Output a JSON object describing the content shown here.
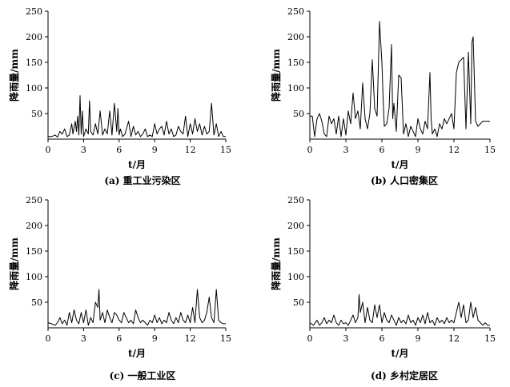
{
  "figure": {
    "x_axis_label": "t/月",
    "y_axis_label": "降雨量/mm"
  },
  "chart_data": [
    {
      "type": "line",
      "caption": "(a) 重工业污染区",
      "xlabel": "t/月",
      "ylabel": "降雨量/mm",
      "xlim": [
        0,
        15
      ],
      "ylim": [
        0,
        250
      ],
      "xticks": [
        0,
        3,
        6,
        9,
        12,
        15
      ],
      "yticks": [
        50,
        100,
        150,
        200,
        250
      ],
      "grid": false,
      "x": [
        0.0,
        0.3,
        0.6,
        0.8,
        1.0,
        1.2,
        1.4,
        1.6,
        1.8,
        2.0,
        2.1,
        2.3,
        2.4,
        2.5,
        2.6,
        2.7,
        2.8,
        2.9,
        3.0,
        3.2,
        3.4,
        3.5,
        3.6,
        3.8,
        4.0,
        4.2,
        4.4,
        4.6,
        4.8,
        5.0,
        5.2,
        5.4,
        5.6,
        5.8,
        5.9,
        6.0,
        6.1,
        6.3,
        6.5,
        6.8,
        7.0,
        7.2,
        7.4,
        7.6,
        7.8,
        8.0,
        8.2,
        8.4,
        8.6,
        8.8,
        9.0,
        9.2,
        9.4,
        9.6,
        9.8,
        10.0,
        10.2,
        10.4,
        10.6,
        10.8,
        11.0,
        11.2,
        11.4,
        11.6,
        11.8,
        12.0,
        12.2,
        12.4,
        12.6,
        12.8,
        13.0,
        13.2,
        13.4,
        13.6,
        13.8,
        14.0,
        14.2,
        14.4,
        14.6,
        14.8,
        15.0
      ],
      "y": [
        5,
        5,
        8,
        4,
        15,
        10,
        20,
        5,
        8,
        30,
        10,
        35,
        15,
        45,
        8,
        85,
        10,
        55,
        5,
        20,
        10,
        75,
        15,
        8,
        30,
        10,
        55,
        8,
        20,
        10,
        55,
        8,
        70,
        15,
        60,
        8,
        20,
        5,
        10,
        35,
        5,
        25,
        8,
        15,
        5,
        10,
        20,
        5,
        8,
        5,
        30,
        10,
        20,
        25,
        8,
        35,
        10,
        20,
        5,
        8,
        25,
        15,
        10,
        45,
        5,
        30,
        10,
        40,
        15,
        30,
        8,
        25,
        10,
        15,
        70,
        8,
        30,
        5,
        15,
        5,
        5
      ]
    },
    {
      "type": "line",
      "caption": "(b) 人口密集区",
      "xlabel": "t/月",
      "ylabel": "降雨量/mm",
      "xlim": [
        0,
        15
      ],
      "ylim": [
        0,
        250
      ],
      "xticks": [
        0,
        3,
        6,
        9,
        12,
        15
      ],
      "yticks": [
        50,
        100,
        150,
        200,
        250
      ],
      "grid": false,
      "x": [
        0.0,
        0.2,
        0.4,
        0.6,
        0.8,
        1.0,
        1.2,
        1.4,
        1.6,
        1.8,
        2.0,
        2.2,
        2.4,
        2.6,
        2.8,
        3.0,
        3.2,
        3.4,
        3.6,
        3.8,
        4.0,
        4.2,
        4.4,
        4.6,
        4.8,
        5.0,
        5.2,
        5.4,
        5.6,
        5.8,
        6.0,
        6.1,
        6.2,
        6.4,
        6.6,
        6.8,
        6.9,
        7.0,
        7.2,
        7.4,
        7.6,
        7.8,
        8.0,
        8.2,
        8.4,
        8.6,
        8.8,
        9.0,
        9.2,
        9.4,
        9.6,
        9.8,
        10.0,
        10.1,
        10.2,
        10.4,
        10.6,
        10.8,
        11.0,
        11.2,
        11.4,
        11.6,
        11.8,
        12.0,
        12.2,
        12.4,
        12.6,
        12.8,
        13.0,
        13.2,
        13.4,
        13.5,
        13.6,
        13.8,
        14.0,
        14.2,
        14.4,
        14.6,
        14.8,
        15.0
      ],
      "y": [
        45,
        45,
        5,
        40,
        50,
        35,
        10,
        5,
        45,
        30,
        40,
        10,
        45,
        5,
        40,
        8,
        55,
        30,
        90,
        40,
        55,
        20,
        110,
        40,
        20,
        50,
        155,
        60,
        45,
        230,
        150,
        80,
        25,
        30,
        60,
        185,
        40,
        70,
        15,
        125,
        120,
        10,
        30,
        5,
        25,
        15,
        5,
        40,
        20,
        10,
        35,
        20,
        130,
        40,
        10,
        20,
        5,
        30,
        20,
        40,
        30,
        40,
        50,
        20,
        130,
        150,
        155,
        160,
        20,
        170,
        30,
        190,
        200,
        35,
        25,
        30,
        35,
        35,
        35,
        35
      ]
    },
    {
      "type": "line",
      "caption": "(c) 一般工业区",
      "xlabel": "t/月",
      "ylabel": "降雨量/mm",
      "xlim": [
        0,
        15
      ],
      "ylim": [
        0,
        250
      ],
      "xticks": [
        0,
        3,
        6,
        9,
        12,
        15
      ],
      "yticks": [
        50,
        100,
        150,
        200,
        250
      ],
      "grid": false,
      "x": [
        0.0,
        0.3,
        0.6,
        0.8,
        1.0,
        1.2,
        1.4,
        1.6,
        1.8,
        2.0,
        2.2,
        2.4,
        2.6,
        2.8,
        3.0,
        3.2,
        3.4,
        3.6,
        3.8,
        4.0,
        4.2,
        4.3,
        4.4,
        4.6,
        4.8,
        5.0,
        5.2,
        5.4,
        5.6,
        5.8,
        6.0,
        6.2,
        6.4,
        6.6,
        6.8,
        7.0,
        7.2,
        7.4,
        7.6,
        7.8,
        8.0,
        8.2,
        8.4,
        8.6,
        8.8,
        9.0,
        9.2,
        9.4,
        9.6,
        9.8,
        10.0,
        10.2,
        10.4,
        10.6,
        10.8,
        11.0,
        11.2,
        11.4,
        11.6,
        11.8,
        12.0,
        12.2,
        12.4,
        12.6,
        12.8,
        13.0,
        13.2,
        13.4,
        13.6,
        13.8,
        14.0,
        14.2,
        14.4,
        14.6,
        14.8,
        15.0
      ],
      "y": [
        10,
        8,
        5,
        10,
        20,
        8,
        15,
        5,
        30,
        10,
        35,
        15,
        8,
        30,
        10,
        35,
        5,
        20,
        10,
        50,
        40,
        75,
        15,
        30,
        10,
        35,
        20,
        10,
        30,
        25,
        15,
        10,
        30,
        20,
        10,
        15,
        8,
        35,
        20,
        10,
        15,
        10,
        5,
        15,
        10,
        25,
        10,
        20,
        8,
        15,
        10,
        30,
        15,
        8,
        20,
        10,
        30,
        15,
        10,
        25,
        10,
        40,
        10,
        75,
        20,
        10,
        15,
        30,
        60,
        20,
        10,
        75,
        15,
        10,
        8,
        8
      ]
    },
    {
      "type": "line",
      "caption": "(d) 乡村定居区",
      "xlabel": "t/月",
      "ylabel": "降雨量/mm",
      "xlim": [
        0,
        15
      ],
      "ylim": [
        0,
        250
      ],
      "xticks": [
        0,
        3,
        6,
        9,
        12,
        15
      ],
      "yticks": [
        50,
        100,
        150,
        200,
        250
      ],
      "grid": false,
      "x": [
        0.0,
        0.3,
        0.6,
        0.8,
        1.0,
        1.2,
        1.4,
        1.6,
        1.8,
        2.0,
        2.2,
        2.4,
        2.6,
        2.8,
        3.0,
        3.2,
        3.4,
        3.6,
        3.8,
        4.0,
        4.1,
        4.2,
        4.4,
        4.6,
        4.8,
        5.0,
        5.2,
        5.4,
        5.6,
        5.8,
        6.0,
        6.2,
        6.4,
        6.6,
        6.8,
        7.0,
        7.2,
        7.4,
        7.6,
        7.8,
        8.0,
        8.2,
        8.4,
        8.6,
        8.8,
        9.0,
        9.2,
        9.4,
        9.6,
        9.8,
        10.0,
        10.2,
        10.4,
        10.6,
        10.8,
        11.0,
        11.2,
        11.4,
        11.6,
        11.8,
        12.0,
        12.2,
        12.4,
        12.6,
        12.8,
        13.0,
        13.2,
        13.4,
        13.6,
        13.8,
        14.0,
        14.2,
        14.4,
        14.6,
        14.8,
        15.0
      ],
      "y": [
        10,
        5,
        15,
        5,
        10,
        20,
        8,
        15,
        10,
        25,
        10,
        5,
        15,
        8,
        10,
        5,
        15,
        25,
        10,
        20,
        65,
        30,
        50,
        10,
        40,
        15,
        10,
        45,
        20,
        45,
        10,
        30,
        15,
        10,
        25,
        15,
        5,
        20,
        10,
        15,
        8,
        25,
        10,
        15,
        5,
        20,
        10,
        25,
        8,
        30,
        10,
        15,
        5,
        20,
        10,
        15,
        8,
        20,
        10,
        15,
        10,
        30,
        50,
        20,
        45,
        10,
        15,
        50,
        20,
        40,
        15,
        10,
        5,
        10,
        5,
        5
      ]
    }
  ]
}
